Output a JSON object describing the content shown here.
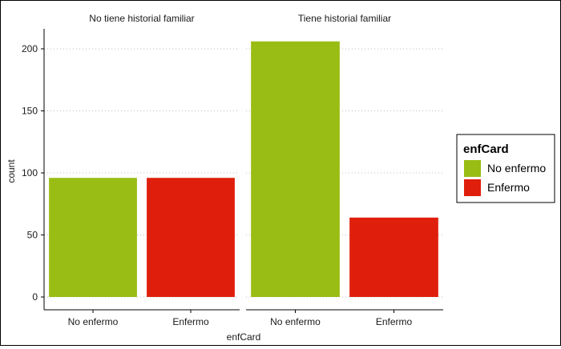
{
  "chart_data": {
    "type": "bar",
    "facets": [
      {
        "label": "No tiene historial familiar",
        "categories": [
          "No enfermo",
          "Enfermo"
        ],
        "values": [
          96,
          96
        ]
      },
      {
        "label": "Tiene historial familiar",
        "categories": [
          "No enfermo",
          "Enfermo"
        ],
        "values": [
          206,
          64
        ]
      }
    ],
    "xlabel": "enfCard",
    "ylabel": "count",
    "ylim": [
      0,
      215
    ],
    "yticks": [
      0,
      50,
      100,
      150,
      200
    ],
    "grid": "horizontal dotted",
    "legend": {
      "title": "enfCard",
      "position": "right",
      "entries": [
        {
          "label": "No enfermo",
          "color": "#99bd14"
        },
        {
          "label": "Enfermo",
          "color": "#df1f0c"
        }
      ]
    }
  }
}
